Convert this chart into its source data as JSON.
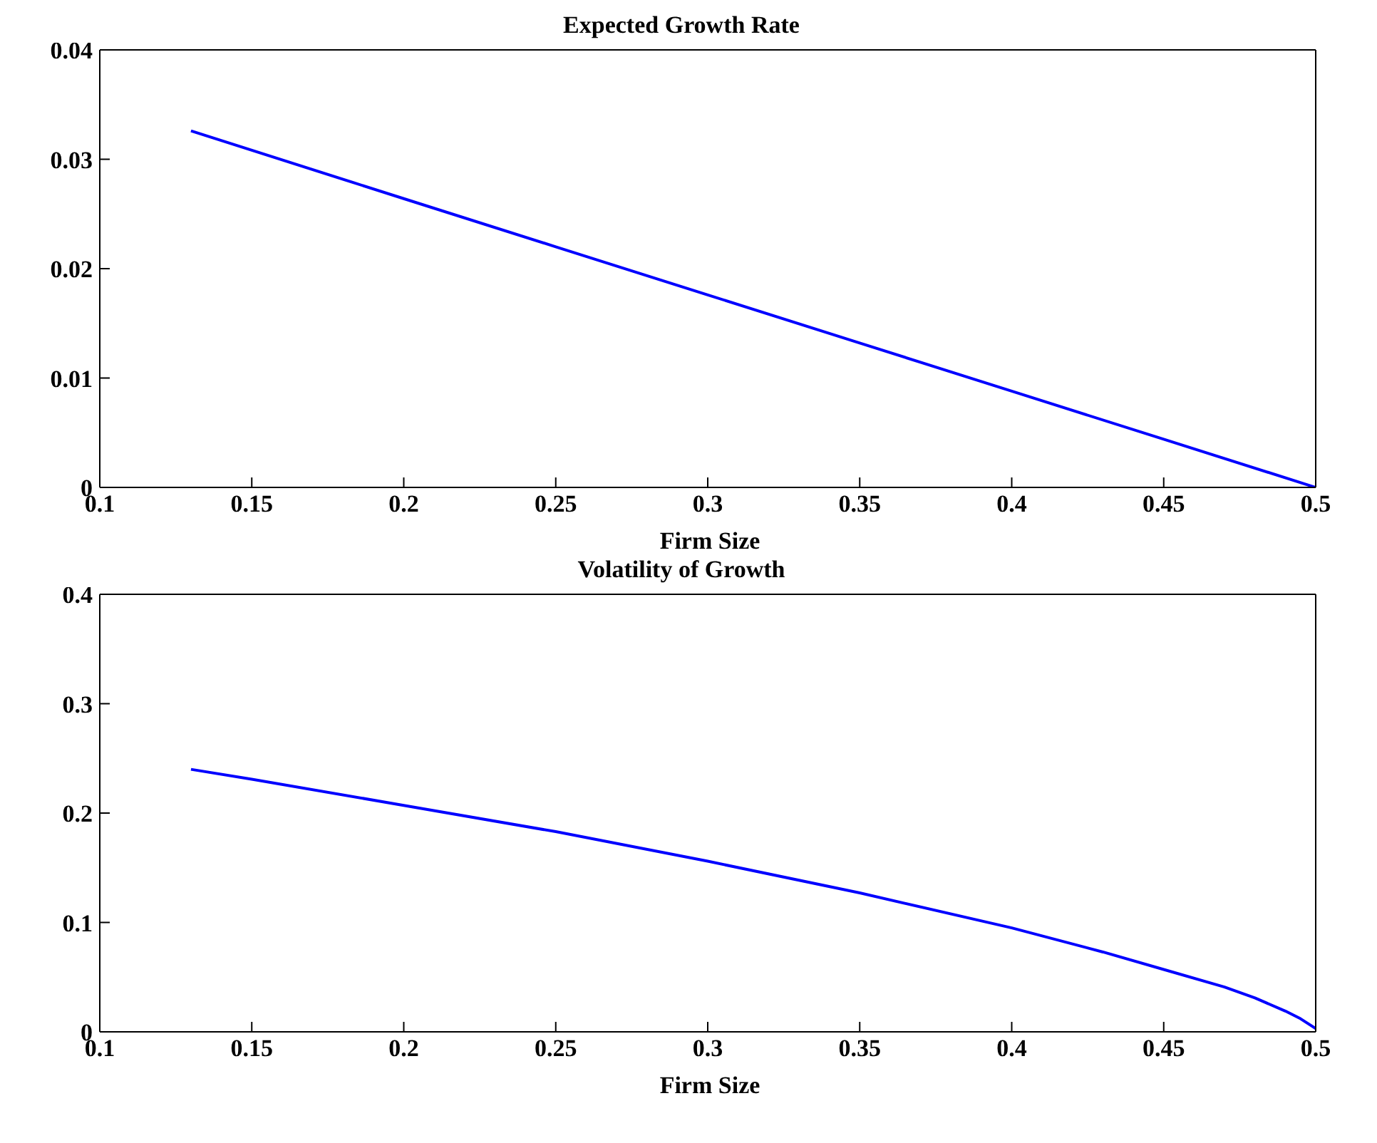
{
  "chart_data": [
    {
      "type": "line",
      "title": "Expected Growth Rate",
      "xlabel": "Firm Size",
      "x": [
        0.13,
        0.2,
        0.25,
        0.3,
        0.35,
        0.4,
        0.45,
        0.5
      ],
      "series": [
        {
          "color": "#0000ff",
          "values": [
            0.0326,
            0.0264,
            0.022,
            0.0176,
            0.0132,
            0.0088,
            0.0044,
            0
          ]
        }
      ],
      "xlim": [
        0.1,
        0.5
      ],
      "xticks": [
        0.1,
        0.15,
        0.2,
        0.25,
        0.3,
        0.35,
        0.4,
        0.45,
        0.5
      ],
      "ylim": [
        0,
        0.04
      ],
      "yticks": [
        0,
        0.01,
        0.02,
        0.03,
        0.04
      ]
    },
    {
      "type": "line",
      "title": "Volatility of Growth",
      "xlabel": "Firm Size",
      "x": [
        0.13,
        0.15,
        0.2,
        0.25,
        0.3,
        0.35,
        0.4,
        0.43,
        0.45,
        0.47,
        0.48,
        0.49,
        0.495,
        0.5
      ],
      "series": [
        {
          "color": "#0000ff",
          "values": [
            0.24,
            0.231,
            0.207,
            0.183,
            0.156,
            0.127,
            0.095,
            0.073,
            0.057,
            0.041,
            0.031,
            0.019,
            0.012,
            0.003
          ]
        }
      ],
      "xlim": [
        0.1,
        0.5
      ],
      "xticks": [
        0.1,
        0.15,
        0.2,
        0.25,
        0.3,
        0.35,
        0.4,
        0.45,
        0.5
      ],
      "ylim": [
        0,
        0.4
      ],
      "yticks": [
        0,
        0.1,
        0.2,
        0.3,
        0.4
      ]
    }
  ]
}
